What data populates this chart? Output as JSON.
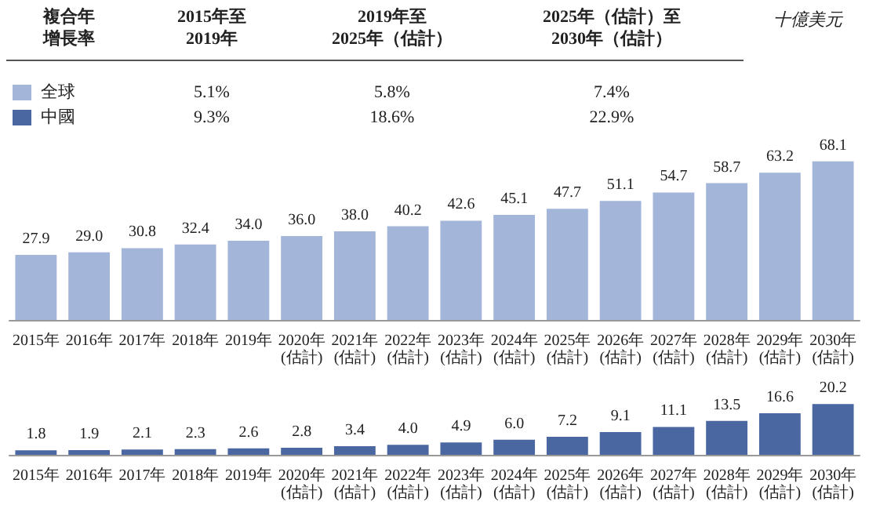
{
  "chart_data": [
    {
      "type": "bar",
      "categories": [
        "2015年",
        "2016年",
        "2017年",
        "2018年",
        "2019年",
        "2020年\n(估計)",
        "2021年\n(估計)",
        "2022年\n(估計)",
        "2023年\n(估計)",
        "2024年\n(估計)",
        "2025年\n(估計)",
        "2026年\n(估計)",
        "2027年\n(估計)",
        "2028年\n(估計)",
        "2029年\n(估計)",
        "2030年\n(估計)"
      ],
      "series": [
        {
          "name": "全球",
          "color": "#a3b5d8",
          "values": [
            27.9,
            29.0,
            30.8,
            32.4,
            34.0,
            36.0,
            38.0,
            40.2,
            42.6,
            45.1,
            47.7,
            51.1,
            54.7,
            58.7,
            63.2,
            68.1
          ],
          "value_labels": [
            "27.9",
            "29.0",
            "30.8",
            "32.4",
            "34.0",
            "36.0",
            "38.0",
            "40.2",
            "42.6",
            "45.1",
            "47.7",
            "51.1",
            "54.7",
            "58.7",
            "63.2",
            "68.1"
          ]
        }
      ],
      "legend": "top left",
      "annotations": [
        "十億美元",
        "複合年",
        "增長率",
        "2015年至",
        "2019年",
        "2019年至",
        "2025年（估計）",
        "2025年（估計）至",
        "2030年（估計）",
        "5.1%",
        "5.8%",
        "7.4%"
      ]
    },
    {
      "type": "bar",
      "categories": [
        "2015年",
        "2016年",
        "2017年",
        "2018年",
        "2019年",
        "2020年\n(估計)",
        "2021年\n(估計)",
        "2022年\n(估計)",
        "2023年\n(估計)",
        "2024年\n(估計)",
        "2025年\n(估計)",
        "2026年\n(估計)",
        "2027年\n(估計)",
        "2028年\n(估計)",
        "2029年\n(估計)",
        "2030年\n(估計)"
      ],
      "series": [
        {
          "name": "中國",
          "color": "#4a67a1",
          "values": [
            1.8,
            1.9,
            2.1,
            2.3,
            2.6,
            2.8,
            3.4,
            4.0,
            4.9,
            6.0,
            7.2,
            9.1,
            11.1,
            13.5,
            16.6,
            20.2
          ],
          "value_labels": [
            "1.8",
            "1.9",
            "2.1",
            "2.3",
            "2.6",
            "2.8",
            "3.4",
            "4.0",
            "4.9",
            "6.0",
            "7.2",
            "9.1",
            "11.1",
            "13.5",
            "16.6",
            "20.2"
          ]
        }
      ],
      "legend": "top left",
      "annotations": [
        "9.3%",
        "18.6%",
        "22.9%"
      ]
    }
  ]
}
